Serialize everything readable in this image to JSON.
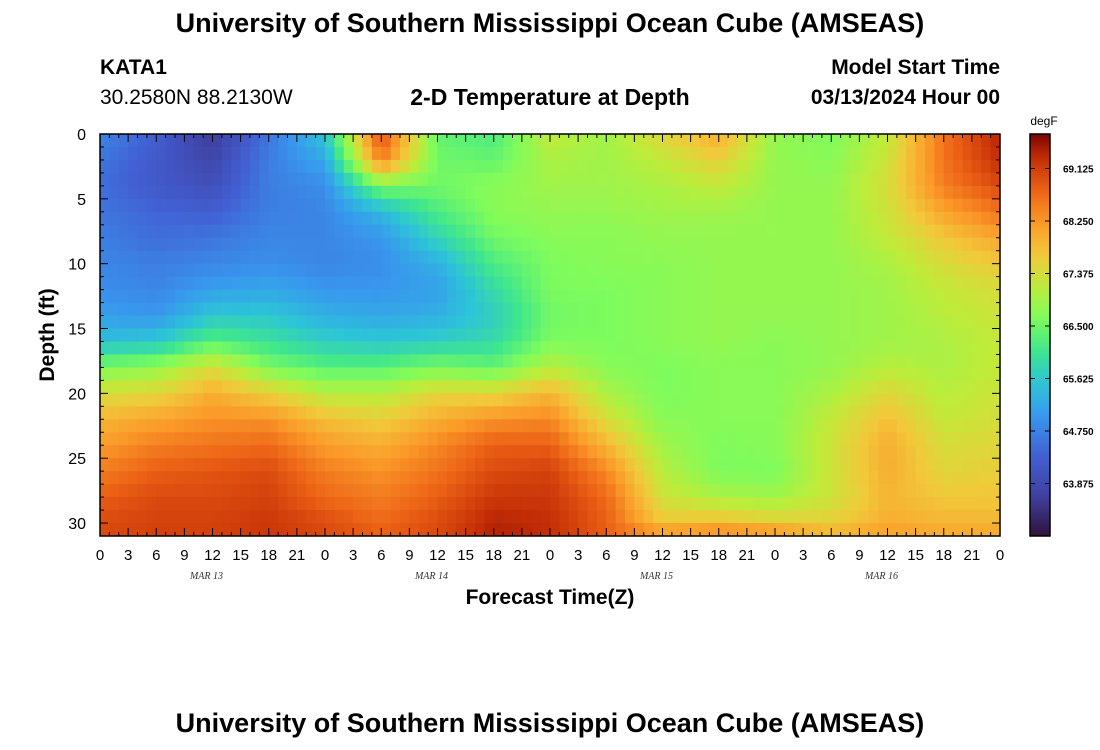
{
  "page": {
    "title_top": "University of Southern Mississippi Ocean Cube (AMSEAS)",
    "title_bottom": "University of Southern Mississippi Ocean Cube (AMSEAS)",
    "station_id": "KATA1",
    "station_coords": "30.2580N  88.2130W",
    "model_start_label": "Model Start Time",
    "model_start_value": "03/13/2024 Hour 00"
  },
  "chart_data": {
    "type": "heatmap",
    "title": "2-D Temperature at Depth",
    "xlabel": "Forecast Time(Z)",
    "ylabel": "Depth (ft)",
    "colorbar_unit": "degF",
    "colorbar_ticks": [
      "69.125",
      "68.250",
      "67.375",
      "66.500",
      "65.625",
      "64.750",
      "63.875"
    ],
    "colorbar_range": [
      63.0,
      69.7
    ],
    "xlim": [
      0,
      96
    ],
    "ylim": [
      0,
      31
    ],
    "x_tick_labels": [
      "0",
      "3",
      "6",
      "9",
      "12",
      "15",
      "18",
      "21",
      "0",
      "3",
      "6",
      "9",
      "12",
      "15",
      "18",
      "21",
      "0",
      "3",
      "6",
      "9",
      "12",
      "15",
      "18",
      "21",
      "0",
      "3",
      "6",
      "9",
      "12",
      "15",
      "18",
      "21",
      "0"
    ],
    "y_ticks": [
      0,
      5,
      10,
      15,
      20,
      25,
      30
    ],
    "y_tick_labels": [
      "0",
      "5",
      "10",
      "15",
      "20",
      "25",
      "30"
    ],
    "date_labels": [
      {
        "label": "MAR 13",
        "x_hour": 12
      },
      {
        "label": "MAR 14",
        "x_hour": 36
      },
      {
        "label": "MAR 15",
        "x_hour": 60
      },
      {
        "label": "MAR 16",
        "x_hour": 84
      }
    ],
    "grid_x_hours": [
      0,
      6,
      12,
      18,
      24,
      30,
      36,
      42,
      48,
      54,
      60,
      66,
      72,
      78,
      84,
      90,
      96
    ],
    "grid_depths_ft": [
      0,
      2,
      4,
      6,
      8,
      10,
      12,
      14,
      16,
      18,
      20,
      22,
      24,
      26,
      28,
      30,
      31
    ],
    "values_degF": [
      [
        64.8,
        64.3,
        63.6,
        64.6,
        65.6,
        69.0,
        66.4,
        66.2,
        67.2,
        66.9,
        67.5,
        68.0,
        66.8,
        66.6,
        67.2,
        68.6,
        69.4
      ],
      [
        64.6,
        64.2,
        63.8,
        64.7,
        65.2,
        68.5,
        66.5,
        66.4,
        67.0,
        66.9,
        67.2,
        67.6,
        66.8,
        66.7,
        67.3,
        68.6,
        69.3
      ],
      [
        64.5,
        64.2,
        64.0,
        64.7,
        64.9,
        66.6,
        66.5,
        66.7,
        66.9,
        66.9,
        67.0,
        67.2,
        66.8,
        66.8,
        67.4,
        68.5,
        69.0
      ],
      [
        64.6,
        64.4,
        64.3,
        64.7,
        64.8,
        65.4,
        66.2,
        66.7,
        66.8,
        66.8,
        66.9,
        66.9,
        66.8,
        66.8,
        67.3,
        68.1,
        68.6
      ],
      [
        64.7,
        64.5,
        64.6,
        64.8,
        64.8,
        65.0,
        65.8,
        66.5,
        66.7,
        66.7,
        66.8,
        66.8,
        66.8,
        66.8,
        67.2,
        67.7,
        68.1
      ],
      [
        64.8,
        64.7,
        64.8,
        64.9,
        64.8,
        64.9,
        65.3,
        66.2,
        66.6,
        66.7,
        66.7,
        66.8,
        66.8,
        66.8,
        67.0,
        67.4,
        67.7
      ],
      [
        64.9,
        64.8,
        65.1,
        65.2,
        65.0,
        65.0,
        65.1,
        65.9,
        66.6,
        66.6,
        66.7,
        66.8,
        66.8,
        66.8,
        66.9,
        67.2,
        67.4
      ],
      [
        65.1,
        65.0,
        65.6,
        65.6,
        65.3,
        65.2,
        65.3,
        65.7,
        66.5,
        66.6,
        66.7,
        66.8,
        66.8,
        66.8,
        66.9,
        67.1,
        67.3
      ],
      [
        65.5,
        65.6,
        66.3,
        66.0,
        65.7,
        65.6,
        65.7,
        65.9,
        66.6,
        66.6,
        66.7,
        66.8,
        66.7,
        66.8,
        66.9,
        67.0,
        67.2
      ],
      [
        66.6,
        66.8,
        67.4,
        66.6,
        66.3,
        66.3,
        66.6,
        66.4,
        67.1,
        66.7,
        66.6,
        66.7,
        66.7,
        66.8,
        67.1,
        67.0,
        67.2
      ],
      [
        67.4,
        67.5,
        68.0,
        67.6,
        67.1,
        67.1,
        67.5,
        67.5,
        67.9,
        67.0,
        66.6,
        66.7,
        66.7,
        67.0,
        67.5,
        67.1,
        67.3
      ],
      [
        67.9,
        68.1,
        68.3,
        68.3,
        67.8,
        67.6,
        68.0,
        68.3,
        68.4,
        67.4,
        66.7,
        66.7,
        66.7,
        67.2,
        67.8,
        67.2,
        67.4
      ],
      [
        68.2,
        68.5,
        68.6,
        68.7,
        68.2,
        68.0,
        68.4,
        68.8,
        68.8,
        67.9,
        66.9,
        66.6,
        66.7,
        67.3,
        68.0,
        67.4,
        67.5
      ],
      [
        68.5,
        68.8,
        68.9,
        69.0,
        68.5,
        68.3,
        68.6,
        69.0,
        69.1,
        68.4,
        67.1,
        66.6,
        66.6,
        67.3,
        68.0,
        67.5,
        67.6
      ],
      [
        68.8,
        69.0,
        69.0,
        69.1,
        68.7,
        68.5,
        68.8,
        69.2,
        69.2,
        68.7,
        67.3,
        67.0,
        66.9,
        67.3,
        67.9,
        67.7,
        67.7
      ],
      [
        69.0,
        69.1,
        69.1,
        69.2,
        69.0,
        68.7,
        69.0,
        69.4,
        69.3,
        68.8,
        67.7,
        67.8,
        67.6,
        67.6,
        68.0,
        67.9,
        67.9
      ],
      [
        69.0,
        69.1,
        69.1,
        69.2,
        69.0,
        68.8,
        69.0,
        69.4,
        69.3,
        68.8,
        68.4,
        68.6,
        68.5,
        68.0,
        68.2,
        68.1,
        68.1
      ]
    ]
  }
}
